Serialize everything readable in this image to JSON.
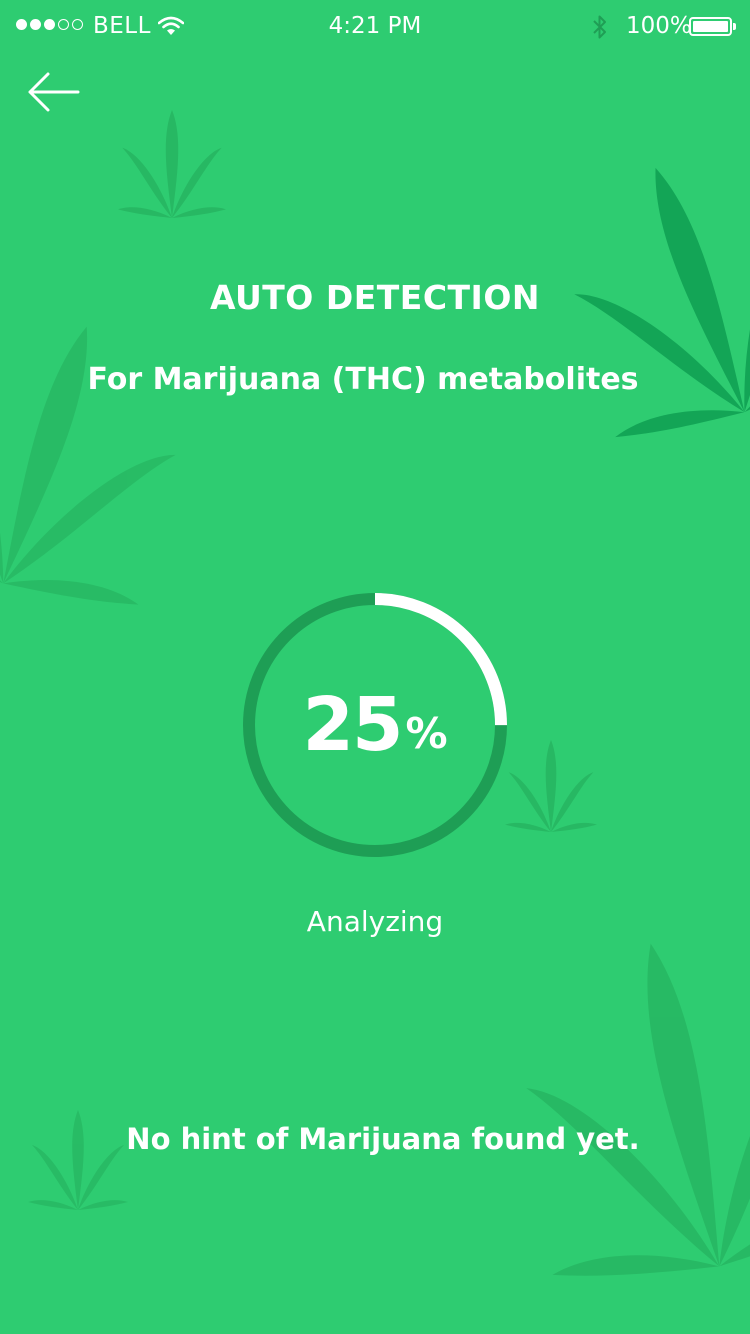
{
  "status_bar": {
    "carrier": "BELL",
    "time": "4:21 PM",
    "battery_percent": "100%",
    "signal_bars_filled": 3,
    "signal_bars_total": 5,
    "battery_level": 1.0
  },
  "header": {
    "back_icon": "arrow-left-icon"
  },
  "main": {
    "title": "AUTO DETECTION",
    "subtitle": "For Marijuana (THC) metabolites",
    "progress": {
      "value": 25,
      "unit": "%",
      "status": "Analyzing"
    },
    "result_message": "No hint of Marijuana found yet."
  },
  "colors": {
    "background": "#2ecc71",
    "ring_track": "#1e9e55",
    "ring_progress": "#ffffff",
    "leaf": "#27b863",
    "leaf_dark": "#13a556",
    "text": "#ffffff"
  },
  "icons": {
    "decor": "cannabis-leaf-icon",
    "wifi": "wifi-icon",
    "bluetooth": "bluetooth-icon",
    "battery": "battery-icon"
  }
}
